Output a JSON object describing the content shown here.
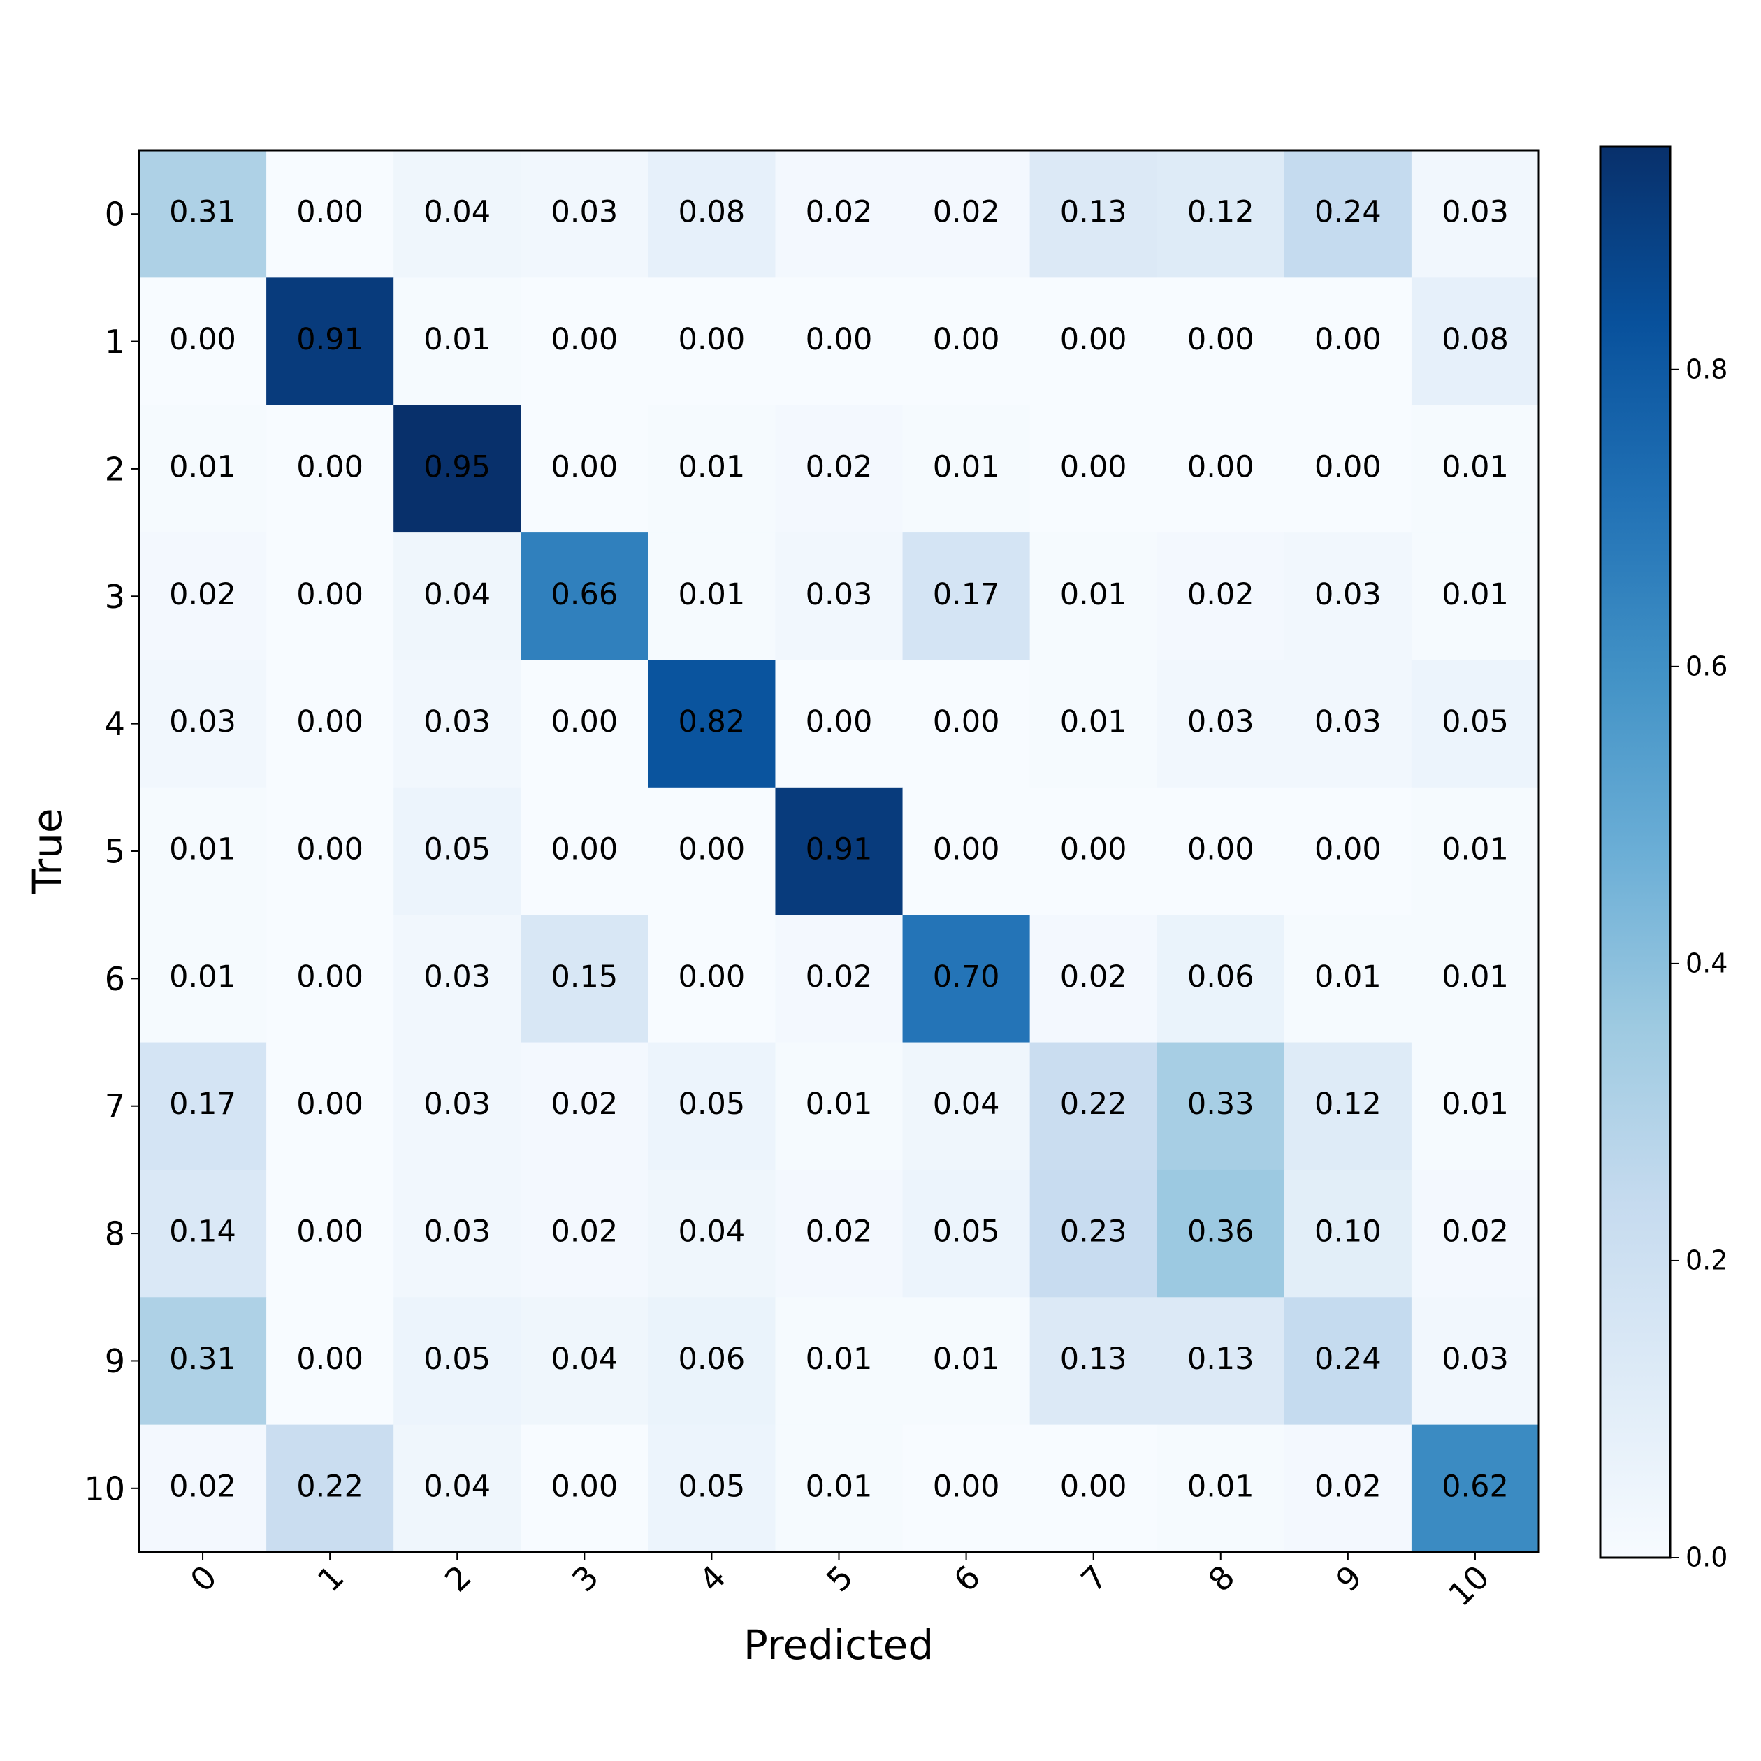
{
  "chart_data": {
    "type": "heatmap",
    "x_label": "Predicted",
    "y_label": "True",
    "x_categories": [
      "0",
      "1",
      "2",
      "3",
      "4",
      "5",
      "6",
      "7",
      "8",
      "9",
      "10"
    ],
    "y_categories": [
      "0",
      "1",
      "2",
      "3",
      "4",
      "5",
      "6",
      "7",
      "8",
      "9",
      "10"
    ],
    "values": [
      [
        0.31,
        0,
        0.04,
        0.03,
        0.08,
        0.02,
        0.02,
        0.13,
        0.12,
        0.24,
        0.03
      ],
      [
        0,
        0.91,
        0.01,
        0,
        0,
        0,
        0,
        0,
        0,
        0,
        0.08
      ],
      [
        0.01,
        0,
        0.95,
        0,
        0.01,
        0.02,
        0.01,
        0,
        0,
        0,
        0.01
      ],
      [
        0.02,
        0,
        0.04,
        0.66,
        0.01,
        0.03,
        0.17,
        0.01,
        0.02,
        0.03,
        0.01
      ],
      [
        0.03,
        0,
        0.03,
        0,
        0.82,
        0,
        0,
        0.01,
        0.03,
        0.03,
        0.05
      ],
      [
        0.01,
        0,
        0.05,
        0,
        0,
        0.91,
        0,
        0,
        0,
        0,
        0.01
      ],
      [
        0.01,
        0,
        0.03,
        0.15,
        0,
        0.02,
        0.7,
        0.02,
        0.06,
        0.01,
        0.01
      ],
      [
        0.17,
        0,
        0.03,
        0.02,
        0.05,
        0.01,
        0.04,
        0.22,
        0.33,
        0.12,
        0.01
      ],
      [
        0.14,
        0,
        0.03,
        0.02,
        0.04,
        0.02,
        0.05,
        0.23,
        0.36,
        0.1,
        0.02
      ],
      [
        0.31,
        0,
        0.05,
        0.04,
        0.06,
        0.01,
        0.01,
        0.13,
        0.13,
        0.24,
        0.03
      ],
      [
        0.02,
        0.22,
        0.04,
        0,
        0.05,
        0.01,
        0,
        0,
        0.01,
        0.02,
        0.62
      ]
    ],
    "value_labels": [
      [
        "0.31",
        "0.00",
        "0.04",
        "0.03",
        "0.08",
        "0.02",
        "0.02",
        "0.13",
        "0.12",
        "0.24",
        "0.03"
      ],
      [
        "0.00",
        "0.91",
        "0.01",
        "0.00",
        "0.00",
        "0.00",
        "0.00",
        "0.00",
        "0.00",
        "0.00",
        "0.08"
      ],
      [
        "0.01",
        "0.00",
        "0.95",
        "0.00",
        "0.01",
        "0.02",
        "0.01",
        "0.00",
        "0.00",
        "0.00",
        "0.01"
      ],
      [
        "0.02",
        "0.00",
        "0.04",
        "0.66",
        "0.01",
        "0.03",
        "0.17",
        "0.01",
        "0.02",
        "0.03",
        "0.01"
      ],
      [
        "0.03",
        "0.00",
        "0.03",
        "0.00",
        "0.82",
        "0.00",
        "0.00",
        "0.01",
        "0.03",
        "0.03",
        "0.05"
      ],
      [
        "0.01",
        "0.00",
        "0.05",
        "0.00",
        "0.00",
        "0.91",
        "0.00",
        "0.00",
        "0.00",
        "0.00",
        "0.01"
      ],
      [
        "0.01",
        "0.00",
        "0.03",
        "0.15",
        "0.00",
        "0.02",
        "0.70",
        "0.02",
        "0.06",
        "0.01",
        "0.01"
      ],
      [
        "0.17",
        "0.00",
        "0.03",
        "0.02",
        "0.05",
        "0.01",
        "0.04",
        "0.22",
        "0.33",
        "0.12",
        "0.01"
      ],
      [
        "0.14",
        "0.00",
        "0.03",
        "0.02",
        "0.04",
        "0.02",
        "0.05",
        "0.23",
        "0.36",
        "0.10",
        "0.02"
      ],
      [
        "0.31",
        "0.00",
        "0.05",
        "0.04",
        "0.06",
        "0.01",
        "0.01",
        "0.13",
        "0.13",
        "0.24",
        "0.03"
      ],
      [
        "0.02",
        "0.22",
        "0.04",
        "0.00",
        "0.05",
        "0.01",
        "0.00",
        "0.00",
        "0.01",
        "0.02",
        "0.62"
      ]
    ],
    "clim": [
      0,
      0.95
    ],
    "cticks": [
      {
        "value": 0,
        "label": "0.0"
      },
      0.2,
      0.4,
      0.6,
      0.8
    ],
    "colormap": [
      "#f7fbff",
      "#deebf7",
      "#c6dbef",
      "#9ecae1",
      "#6baed6",
      "#4292c6",
      "#2171b5",
      "#08519c",
      "#08306b"
    ]
  }
}
